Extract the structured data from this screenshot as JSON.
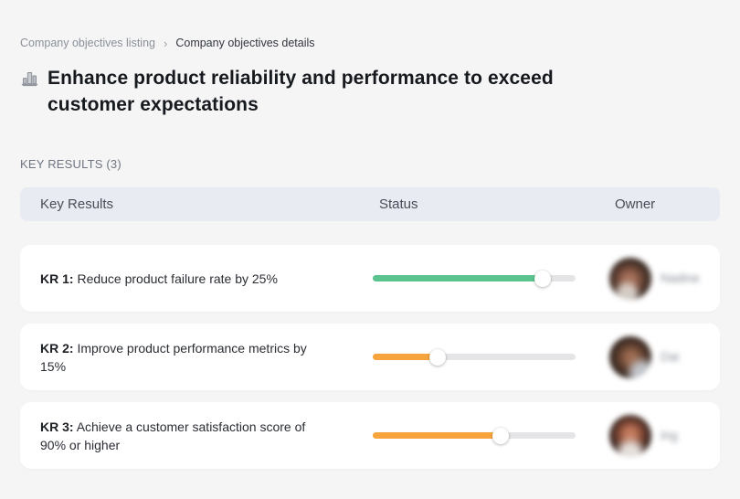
{
  "breadcrumb": {
    "listing_label": "Company objectives listing",
    "separator": "›",
    "details_label": "Company objectives details"
  },
  "page": {
    "title": "Enhance product reliability and performance to exceed customer expectations",
    "section_label": "KEY RESULTS (3)"
  },
  "table": {
    "columns": [
      "Key Results",
      "Status",
      "Owner"
    ],
    "rows": [
      {
        "kr_label": "KR 1:",
        "kr_text": "Reduce product failure rate by 25%",
        "progress_percent": 84,
        "progress_color": "#5bc48e",
        "owner": "Nadine"
      },
      {
        "kr_label": "KR 2:",
        "kr_text": "Improve product performance metrics by 15%",
        "progress_percent": 32,
        "progress_color": "#f7a43c",
        "owner": "Dai"
      },
      {
        "kr_label": "KR 3:",
        "kr_text": "Achieve a customer satisfaction score of 90% or higher",
        "progress_percent": 63,
        "progress_color": "#f7a43c",
        "owner": "Ing"
      }
    ]
  },
  "colors": {
    "status_on_track": "#5bc48e",
    "status_at_risk": "#f7a43c",
    "progress_track": "#e5e5e7",
    "header_bg": "#e9ebf3",
    "page_bg": "#f5f5f6"
  }
}
